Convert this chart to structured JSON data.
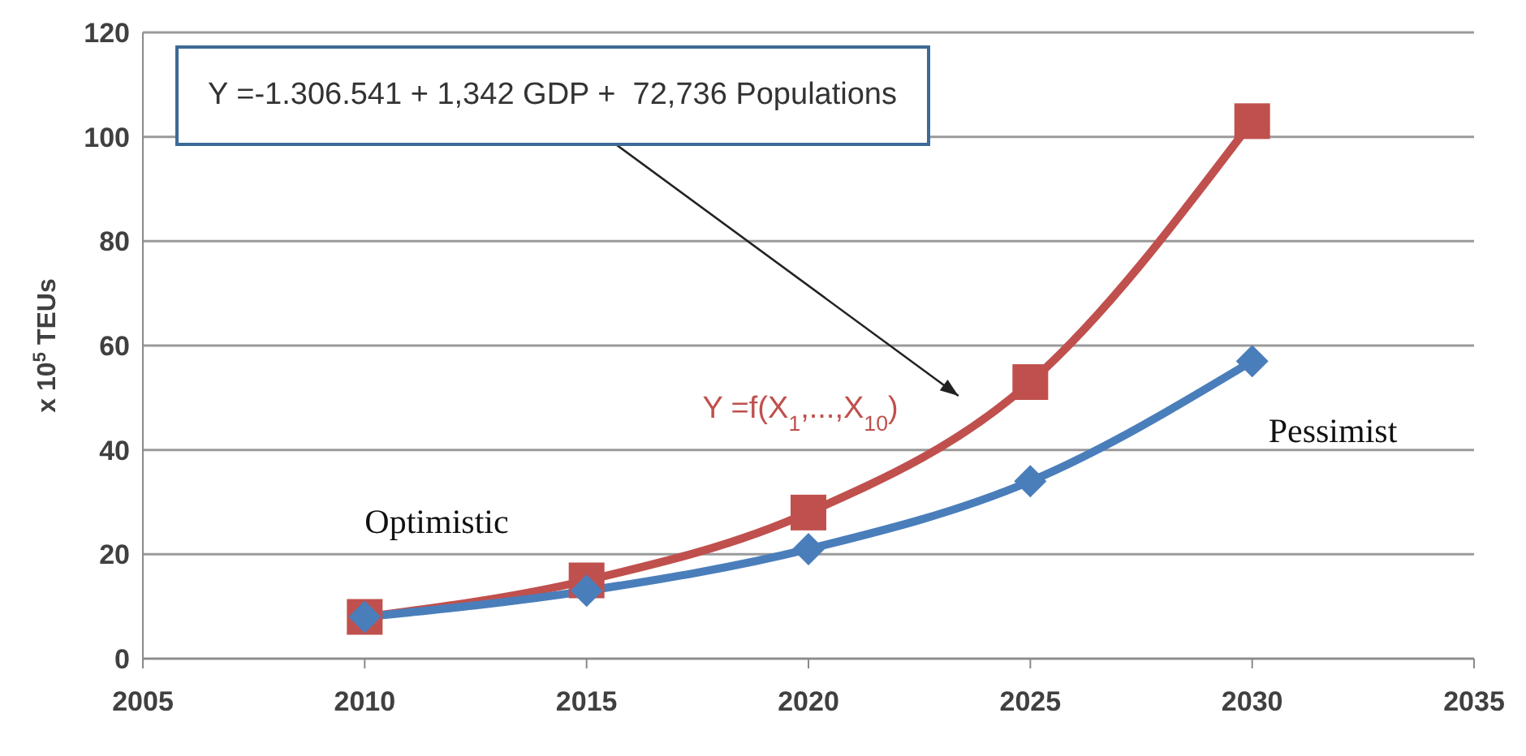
{
  "chart_data": {
    "type": "line",
    "ylabel": "x 10$^{5}$ TEUs",
    "x": [
      2010,
      2015,
      2020,
      2025,
      2030
    ],
    "series": [
      {
        "name": "Optimistic",
        "color": "#c0504d",
        "marker": "square",
        "values": [
          8,
          15,
          28,
          53,
          103
        ]
      },
      {
        "name": "Pessimist",
        "color": "#4a7ebb",
        "marker": "diamond",
        "values": [
          8,
          13,
          21,
          34,
          57
        ]
      }
    ],
    "xlim": [
      2005,
      2035
    ],
    "xticks": [
      2005,
      2010,
      2015,
      2020,
      2025,
      2030,
      2035
    ],
    "ylim": [
      0,
      120
    ],
    "yticks": [
      0,
      20,
      40,
      60,
      80,
      100,
      120
    ],
    "grid": "y",
    "legend": false,
    "annotations": [
      "Y =-1.306.541 + 1,342 GDP +  72,736 Populations",
      "Y =f(X$_{1}$,...,X$_{10}$)"
    ]
  }
}
